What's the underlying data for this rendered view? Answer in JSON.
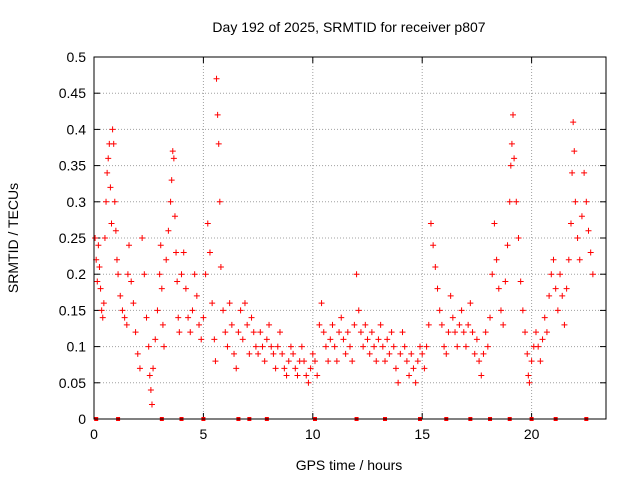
{
  "chart_data": {
    "type": "scatter",
    "title": "Day 192 of 2025, SRMTID for receiver p807",
    "xlabel": "GPS time / hours",
    "ylabel": "SRMTID / TECUs",
    "xlim": [
      0,
      23.4
    ],
    "ylim": [
      0,
      0.5
    ],
    "xticks": [
      0,
      5,
      10,
      15,
      20
    ],
    "xtick_labels": [
      "0",
      "5",
      "10",
      "15",
      "20"
    ],
    "yticks": [
      0,
      0.05,
      0.1,
      0.15,
      0.2,
      0.25,
      0.3,
      0.35,
      0.4,
      0.45,
      0.5
    ],
    "ytick_labels": [
      "0",
      "0.05",
      "0.1",
      "0.15",
      "0.2",
      "0.25",
      "0.3",
      "0.35",
      "0.4",
      "0.45",
      "0.5"
    ],
    "grid": true,
    "marker": "+",
    "color": "#ff0000",
    "series": [
      {
        "name": "SRMTID",
        "points": [
          [
            0.05,
            0.25
          ],
          [
            0.1,
            0.22
          ],
          [
            0.15,
            0.19
          ],
          [
            0.2,
            0.24
          ],
          [
            0.25,
            0.21
          ],
          [
            0.3,
            0.18
          ],
          [
            0.35,
            0.15
          ],
          [
            0.4,
            0.14
          ],
          [
            0.45,
            0.16
          ],
          [
            0.5,
            0.25
          ],
          [
            0.55,
            0.3
          ],
          [
            0.6,
            0.34
          ],
          [
            0.65,
            0.36
          ],
          [
            0.7,
            0.38
          ],
          [
            0.75,
            0.32
          ],
          [
            0.8,
            0.27
          ],
          [
            0.85,
            0.4
          ],
          [
            0.9,
            0.38
          ],
          [
            0.95,
            0.3
          ],
          [
            1.0,
            0.26
          ],
          [
            1.05,
            0.22
          ],
          [
            1.1,
            0.2
          ],
          [
            1.2,
            0.17
          ],
          [
            1.3,
            0.15
          ],
          [
            1.4,
            0.14
          ],
          [
            1.5,
            0.13
          ],
          [
            1.55,
            0.2
          ],
          [
            1.6,
            0.24
          ],
          [
            1.7,
            0.19
          ],
          [
            1.8,
            0.16
          ],
          [
            1.9,
            0.12
          ],
          [
            2.0,
            0.09
          ],
          [
            2.1,
            0.07
          ],
          [
            2.2,
            0.25
          ],
          [
            2.3,
            0.2
          ],
          [
            2.4,
            0.14
          ],
          [
            2.5,
            0.1
          ],
          [
            2.55,
            0.06
          ],
          [
            2.6,
            0.04
          ],
          [
            2.65,
            0.02
          ],
          [
            2.7,
            0.07
          ],
          [
            2.8,
            0.11
          ],
          [
            2.9,
            0.15
          ],
          [
            3.0,
            0.2
          ],
          [
            3.05,
            0.24
          ],
          [
            3.1,
            0.18
          ],
          [
            3.15,
            0.13
          ],
          [
            3.2,
            0.1
          ],
          [
            3.3,
            0.22
          ],
          [
            3.4,
            0.26
          ],
          [
            3.5,
            0.3
          ],
          [
            3.55,
            0.33
          ],
          [
            3.6,
            0.37
          ],
          [
            3.65,
            0.36
          ],
          [
            3.7,
            0.28
          ],
          [
            3.75,
            0.23
          ],
          [
            3.8,
            0.19
          ],
          [
            3.85,
            0.14
          ],
          [
            3.9,
            0.12
          ],
          [
            4.0,
            0.2
          ],
          [
            4.1,
            0.23
          ],
          [
            4.2,
            0.18
          ],
          [
            4.3,
            0.14
          ],
          [
            4.4,
            0.12
          ],
          [
            4.5,
            0.15
          ],
          [
            4.6,
            0.2
          ],
          [
            4.7,
            0.17
          ],
          [
            4.8,
            0.13
          ],
          [
            4.9,
            0.11
          ],
          [
            5.0,
            0.14
          ],
          [
            5.1,
            0.2
          ],
          [
            5.2,
            0.27
          ],
          [
            5.3,
            0.23
          ],
          [
            5.4,
            0.16
          ],
          [
            5.5,
            0.11
          ],
          [
            5.55,
            0.08
          ],
          [
            5.6,
            0.47
          ],
          [
            5.65,
            0.42
          ],
          [
            5.7,
            0.38
          ],
          [
            5.75,
            0.3
          ],
          [
            5.8,
            0.21
          ],
          [
            5.9,
            0.15
          ],
          [
            6.0,
            0.12
          ],
          [
            6.1,
            0.1
          ],
          [
            6.2,
            0.16
          ],
          [
            6.3,
            0.13
          ],
          [
            6.4,
            0.09
          ],
          [
            6.5,
            0.07
          ],
          [
            6.6,
            0.12
          ],
          [
            6.7,
            0.15
          ],
          [
            6.8,
            0.11
          ],
          [
            6.9,
            0.16
          ],
          [
            7.0,
            0.13
          ],
          [
            7.1,
            0.09
          ],
          [
            7.2,
            0.14
          ],
          [
            7.3,
            0.12
          ],
          [
            7.4,
            0.1
          ],
          [
            7.5,
            0.09
          ],
          [
            7.6,
            0.12
          ],
          [
            7.7,
            0.1
          ],
          [
            7.8,
            0.08
          ],
          [
            7.9,
            0.11
          ],
          [
            8.0,
            0.13
          ],
          [
            8.1,
            0.1
          ],
          [
            8.2,
            0.09
          ],
          [
            8.3,
            0.07
          ],
          [
            8.4,
            0.1
          ],
          [
            8.5,
            0.12
          ],
          [
            8.6,
            0.09
          ],
          [
            8.7,
            0.07
          ],
          [
            8.8,
            0.06
          ],
          [
            8.9,
            0.08
          ],
          [
            9.0,
            0.1
          ],
          [
            9.1,
            0.09
          ],
          [
            9.2,
            0.07
          ],
          [
            9.3,
            0.06
          ],
          [
            9.4,
            0.08
          ],
          [
            9.5,
            0.1
          ],
          [
            9.6,
            0.08
          ],
          [
            9.7,
            0.06
          ],
          [
            9.8,
            0.05
          ],
          [
            9.9,
            0.07
          ],
          [
            10.0,
            0.09
          ],
          [
            10.1,
            0.08
          ],
          [
            10.2,
            0.06
          ],
          [
            10.3,
            0.13
          ],
          [
            10.4,
            0.16
          ],
          [
            10.5,
            0.12
          ],
          [
            10.6,
            0.1
          ],
          [
            10.7,
            0.08
          ],
          [
            10.8,
            0.11
          ],
          [
            10.9,
            0.13
          ],
          [
            11.0,
            0.1
          ],
          [
            11.1,
            0.08
          ],
          [
            11.2,
            0.12
          ],
          [
            11.3,
            0.14
          ],
          [
            11.4,
            0.11
          ],
          [
            11.5,
            0.09
          ],
          [
            11.6,
            0.12
          ],
          [
            11.7,
            0.1
          ],
          [
            11.8,
            0.08
          ],
          [
            11.9,
            0.13
          ],
          [
            12.0,
            0.2
          ],
          [
            12.1,
            0.15
          ],
          [
            12.2,
            0.12
          ],
          [
            12.3,
            0.1
          ],
          [
            12.4,
            0.13
          ],
          [
            12.5,
            0.11
          ],
          [
            12.6,
            0.09
          ],
          [
            12.7,
            0.12
          ],
          [
            12.8,
            0.1
          ],
          [
            12.9,
            0.08
          ],
          [
            13.0,
            0.11
          ],
          [
            13.1,
            0.13
          ],
          [
            13.2,
            0.1
          ],
          [
            13.3,
            0.08
          ],
          [
            13.4,
            0.11
          ],
          [
            13.5,
            0.09
          ],
          [
            13.6,
            0.12
          ],
          [
            13.7,
            0.1
          ],
          [
            13.8,
            0.07
          ],
          [
            13.9,
            0.05
          ],
          [
            14.0,
            0.09
          ],
          [
            14.1,
            0.12
          ],
          [
            14.2,
            0.1
          ],
          [
            14.3,
            0.08
          ],
          [
            14.4,
            0.06
          ],
          [
            14.5,
            0.09
          ],
          [
            14.6,
            0.07
          ],
          [
            14.7,
            0.05
          ],
          [
            14.8,
            0.08
          ],
          [
            14.9,
            0.1
          ],
          [
            15.0,
            0.09
          ],
          [
            15.1,
            0.07
          ],
          [
            15.2,
            0.1
          ],
          [
            15.3,
            0.13
          ],
          [
            15.4,
            0.27
          ],
          [
            15.5,
            0.24
          ],
          [
            15.6,
            0.21
          ],
          [
            15.7,
            0.18
          ],
          [
            15.8,
            0.15
          ],
          [
            15.9,
            0.13
          ],
          [
            16.0,
            0.1
          ],
          [
            16.1,
            0.09
          ],
          [
            16.2,
            0.12
          ],
          [
            16.3,
            0.17
          ],
          [
            16.4,
            0.14
          ],
          [
            16.5,
            0.12
          ],
          [
            16.6,
            0.1
          ],
          [
            16.7,
            0.13
          ],
          [
            16.8,
            0.15
          ],
          [
            16.9,
            0.12
          ],
          [
            17.0,
            0.1
          ],
          [
            17.1,
            0.13
          ],
          [
            17.2,
            0.16
          ],
          [
            17.3,
            0.12
          ],
          [
            17.4,
            0.09
          ],
          [
            17.5,
            0.11
          ],
          [
            17.6,
            0.08
          ],
          [
            17.7,
            0.06
          ],
          [
            17.8,
            0.09
          ],
          [
            17.9,
            0.12
          ],
          [
            18.0,
            0.1
          ],
          [
            18.1,
            0.14
          ],
          [
            18.2,
            0.2
          ],
          [
            18.3,
            0.27
          ],
          [
            18.4,
            0.22
          ],
          [
            18.5,
            0.18
          ],
          [
            18.6,
            0.15
          ],
          [
            18.7,
            0.13
          ],
          [
            18.8,
            0.19
          ],
          [
            18.9,
            0.24
          ],
          [
            19.0,
            0.3
          ],
          [
            19.05,
            0.35
          ],
          [
            19.1,
            0.38
          ],
          [
            19.15,
            0.42
          ],
          [
            19.2,
            0.36
          ],
          [
            19.3,
            0.3
          ],
          [
            19.4,
            0.25
          ],
          [
            19.5,
            0.19
          ],
          [
            19.6,
            0.15
          ],
          [
            19.7,
            0.12
          ],
          [
            19.8,
            0.09
          ],
          [
            19.85,
            0.06
          ],
          [
            19.9,
            0.05
          ],
          [
            20.0,
            0.08
          ],
          [
            20.1,
            0.1
          ],
          [
            20.2,
            0.12
          ],
          [
            20.3,
            0.1
          ],
          [
            20.4,
            0.08
          ],
          [
            20.5,
            0.11
          ],
          [
            20.6,
            0.14
          ],
          [
            20.7,
            0.12
          ],
          [
            20.8,
            0.17
          ],
          [
            20.9,
            0.2
          ],
          [
            21.0,
            0.22
          ],
          [
            21.1,
            0.18
          ],
          [
            21.2,
            0.15
          ],
          [
            21.3,
            0.2
          ],
          [
            21.4,
            0.17
          ],
          [
            21.5,
            0.13
          ],
          [
            21.6,
            0.18
          ],
          [
            21.7,
            0.22
          ],
          [
            21.8,
            0.27
          ],
          [
            21.85,
            0.34
          ],
          [
            21.9,
            0.41
          ],
          [
            21.95,
            0.37
          ],
          [
            22.0,
            0.3
          ],
          [
            22.1,
            0.25
          ],
          [
            22.2,
            0.22
          ],
          [
            22.3,
            0.28
          ],
          [
            22.4,
            0.34
          ],
          [
            22.5,
            0.3
          ],
          [
            22.6,
            0.26
          ],
          [
            22.7,
            0.23
          ],
          [
            22.8,
            0.2
          ]
        ]
      }
    ],
    "baseline_points_x": [
      0.1,
      1.1,
      3.1,
      4.0,
      5.0,
      6.6,
      7.1,
      7.9,
      10.1,
      12.0,
      13.3,
      14.9,
      16.1,
      17.2,
      18.1,
      19.0,
      20.0,
      21.1,
      22.5
    ]
  }
}
